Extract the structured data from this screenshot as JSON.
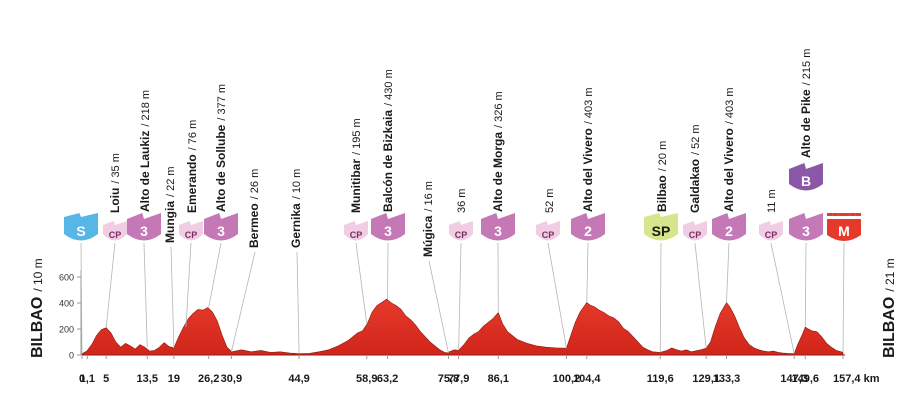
{
  "chart_data": {
    "type": "area",
    "start_label": "BILBAO",
    "start_alt": "/ 10 m",
    "finish_label": "BILBAO",
    "finish_alt": "/ 21 m",
    "unit": "km",
    "ylim": [
      0,
      650
    ],
    "yticks": [
      "0",
      "200",
      "400",
      "600"
    ],
    "xticks": [
      {
        "km": 0,
        "label": "0"
      },
      {
        "km": 1.1,
        "label": "1,1"
      },
      {
        "km": 5,
        "label": "5"
      },
      {
        "km": 13.5,
        "label": "13,5"
      },
      {
        "km": 19,
        "label": "19"
      },
      {
        "km": 26.2,
        "label": "26,2"
      },
      {
        "km": 30.9,
        "label": "30,9"
      },
      {
        "km": 44.9,
        "label": "44,9"
      },
      {
        "km": 58.9,
        "label": "58,9"
      },
      {
        "km": 63.2,
        "label": "63,2"
      },
      {
        "km": 75.8,
        "label": "75,8"
      },
      {
        "km": 77.9,
        "label": "77,9"
      },
      {
        "km": 86.1,
        "label": "86,1"
      },
      {
        "km": 100.2,
        "label": "100,2"
      },
      {
        "km": 104.4,
        "label": "104,4"
      },
      {
        "km": 119.6,
        "label": "119,6"
      },
      {
        "km": 129.1,
        "label": "129,1"
      },
      {
        "km": 133.3,
        "label": "133,3"
      },
      {
        "km": 147.3,
        "label": "147,3"
      },
      {
        "km": 149.6,
        "label": "149,6"
      },
      {
        "km": 157.4,
        "label": "157,4 km"
      }
    ],
    "profile": [
      [
        0,
        10
      ],
      [
        1,
        30
      ],
      [
        2,
        80
      ],
      [
        3,
        150
      ],
      [
        4,
        195
      ],
      [
        5,
        210
      ],
      [
        6,
        170
      ],
      [
        7,
        100
      ],
      [
        8,
        60
      ],
      [
        9,
        90
      ],
      [
        10,
        70
      ],
      [
        11,
        45
      ],
      [
        12,
        80
      ],
      [
        13,
        60
      ],
      [
        14,
        30
      ],
      [
        15,
        35
      ],
      [
        16,
        60
      ],
      [
        17,
        95
      ],
      [
        18,
        65
      ],
      [
        19,
        55
      ],
      [
        20,
        140
      ],
      [
        21,
        215
      ],
      [
        22,
        280
      ],
      [
        23,
        320
      ],
      [
        24,
        350
      ],
      [
        25,
        345
      ],
      [
        26,
        365
      ],
      [
        27,
        330
      ],
      [
        28,
        260
      ],
      [
        29,
        150
      ],
      [
        30,
        60
      ],
      [
        31,
        25
      ],
      [
        33,
        40
      ],
      [
        35,
        25
      ],
      [
        37,
        35
      ],
      [
        39,
        20
      ],
      [
        41,
        25
      ],
      [
        43,
        15
      ],
      [
        45,
        10
      ],
      [
        47,
        12
      ],
      [
        49,
        25
      ],
      [
        51,
        40
      ],
      [
        53,
        70
      ],
      [
        55,
        110
      ],
      [
        57,
        170
      ],
      [
        58,
        185
      ],
      [
        59,
        240
      ],
      [
        60,
        330
      ],
      [
        61,
        380
      ],
      [
        62,
        405
      ],
      [
        63,
        430
      ],
      [
        64,
        400
      ],
      [
        65,
        380
      ],
      [
        66,
        350
      ],
      [
        67,
        300
      ],
      [
        68,
        270
      ],
      [
        69,
        230
      ],
      [
        70,
        180
      ],
      [
        71,
        140
      ],
      [
        72,
        100
      ],
      [
        73,
        70
      ],
      [
        74,
        40
      ],
      [
        75,
        20
      ],
      [
        75.8,
        16
      ],
      [
        76,
        25
      ],
      [
        77,
        40
      ],
      [
        77.9,
        36
      ],
      [
        79,
        80
      ],
      [
        80,
        130
      ],
      [
        81,
        160
      ],
      [
        82,
        180
      ],
      [
        83,
        220
      ],
      [
        84,
        250
      ],
      [
        85,
        280
      ],
      [
        86.1,
        326
      ],
      [
        87,
        240
      ],
      [
        88,
        180
      ],
      [
        89,
        150
      ],
      [
        90,
        120
      ],
      [
        92,
        90
      ],
      [
        94,
        70
      ],
      [
        96,
        60
      ],
      [
        98,
        55
      ],
      [
        100.2,
        52
      ],
      [
        101,
        140
      ],
      [
        102,
        250
      ],
      [
        103,
        330
      ],
      [
        104.4,
        403
      ],
      [
        105,
        385
      ],
      [
        106,
        370
      ],
      [
        107,
        345
      ],
      [
        108,
        325
      ],
      [
        109,
        300
      ],
      [
        110,
        285
      ],
      [
        111,
        255
      ],
      [
        112,
        205
      ],
      [
        113,
        180
      ],
      [
        114,
        140
      ],
      [
        115,
        100
      ],
      [
        116,
        60
      ],
      [
        117,
        40
      ],
      [
        118,
        25
      ],
      [
        119.6,
        20
      ],
      [
        121,
        35
      ],
      [
        122,
        55
      ],
      [
        123,
        40
      ],
      [
        124,
        30
      ],
      [
        125,
        40
      ],
      [
        126,
        25
      ],
      [
        128,
        40
      ],
      [
        129.1,
        52
      ],
      [
        130,
        100
      ],
      [
        131,
        220
      ],
      [
        132,
        320
      ],
      [
        133.3,
        403
      ],
      [
        134,
        370
      ],
      [
        135,
        300
      ],
      [
        136,
        210
      ],
      [
        137,
        130
      ],
      [
        138,
        80
      ],
      [
        139,
        55
      ],
      [
        140,
        40
      ],
      [
        141,
        30
      ],
      [
        142,
        25
      ],
      [
        143,
        30
      ],
      [
        144,
        20
      ],
      [
        145,
        15
      ],
      [
        146,
        12
      ],
      [
        147.3,
        11
      ],
      [
        148,
        80
      ],
      [
        149,
        160
      ],
      [
        149.6,
        215
      ],
      [
        150,
        205
      ],
      [
        151,
        185
      ],
      [
        152,
        180
      ],
      [
        153,
        140
      ],
      [
        154,
        90
      ],
      [
        155,
        60
      ],
      [
        156,
        35
      ],
      [
        157,
        25
      ],
      [
        157.4,
        21
      ]
    ]
  },
  "markers": [
    {
      "km": 0,
      "badge": "S",
      "badge_style": "start",
      "name": "",
      "alt": "",
      "label": ""
    },
    {
      "km": 5,
      "badge": "CP",
      "badge_style": "cp",
      "name": "Loiu",
      "alt": "/ 35 m",
      "label": "Loiu / 35 m"
    },
    {
      "km": 13.5,
      "badge": "3",
      "badge_style": "cat3",
      "name": "Alto de Laukiz",
      "alt": "/ 218 m",
      "label": "Alto de Laukiz / 218 m"
    },
    {
      "km": 19,
      "badge": "",
      "badge_style": "none",
      "name": "Mungia",
      "alt": "/ 22 m",
      "label": "Mungia / 22 m"
    },
    {
      "km": 21.5,
      "badge": "CP",
      "badge_style": "cp",
      "name": "Emerando",
      "alt": "/ 76 m",
      "label": "Emerando / 76 m"
    },
    {
      "km": 26.2,
      "badge": "3",
      "badge_style": "cat3",
      "name": "Alto de Sollube",
      "alt": "/ 377 m",
      "label": "Alto de Sollube / 377 m"
    },
    {
      "km": 30.9,
      "badge": "",
      "badge_style": "none",
      "name": "Bermeo",
      "alt": "/ 26 m",
      "label": "Bermeo / 26 m"
    },
    {
      "km": 44.9,
      "badge": "",
      "badge_style": "none",
      "name": "Gernika",
      "alt": "/ 10 m",
      "label": "Gernika / 10 m"
    },
    {
      "km": 58.9,
      "badge": "CP",
      "badge_style": "cp",
      "name": "Munitibar",
      "alt": "/ 195 m",
      "label": "Munitibar / 195 m"
    },
    {
      "km": 63.2,
      "badge": "3",
      "badge_style": "cat3",
      "name": "Balcón de Bizkaia",
      "alt": "/ 430 m",
      "label": "Balcón de Bizkaia / 430 m"
    },
    {
      "km": 75.8,
      "badge": "",
      "badge_style": "none",
      "name": "Múgica",
      "alt": "/ 16 m",
      "label": "Múgica / 16 m"
    },
    {
      "km": 77.9,
      "badge": "CP",
      "badge_style": "cp",
      "name": "",
      "alt": "36 m",
      "label": "36 m"
    },
    {
      "km": 86.1,
      "badge": "3",
      "badge_style": "cat3",
      "name": "Alto de Morga",
      "alt": "/ 326 m",
      "label": "Alto de Morga / 326 m"
    },
    {
      "km": 100.2,
      "badge": "CP",
      "badge_style": "cp",
      "name": "",
      "alt": "52 m",
      "label": "52 m"
    },
    {
      "km": 104.4,
      "badge": "2",
      "badge_style": "cat2",
      "name": "Alto del Vivero",
      "alt": "/ 403 m",
      "label": "Alto del Vivero / 403 m"
    },
    {
      "km": 119.6,
      "badge": "SP",
      "badge_style": "sprint",
      "name": "Bilbao",
      "alt": "/ 20 m",
      "label": "Bilbao / 20 m"
    },
    {
      "km": 129.1,
      "badge": "CP",
      "badge_style": "cp",
      "name": "Galdakao",
      "alt": "/ 52 m",
      "label": "Galdakao / 52 m"
    },
    {
      "km": 133.3,
      "badge": "2",
      "badge_style": "cat2",
      "name": "Alto del Vivero",
      "alt": "/ 403 m",
      "label": "Alto del Vivero / 403 m"
    },
    {
      "km": 147.3,
      "badge": "CP",
      "badge_style": "cp",
      "name": "",
      "alt": "11 m",
      "label": "11 m"
    },
    {
      "km": 149.6,
      "badge": "3",
      "badge_style": "cat3",
      "name": "Alto de Pike",
      "alt": "/ 215 m",
      "label": "Alto de Pike / 215 m"
    },
    {
      "km": 149.6,
      "badge": "B",
      "badge_style": "bonus",
      "name": "",
      "alt": "",
      "label": ""
    },
    {
      "km": 157.4,
      "badge": "M",
      "badge_style": "finish",
      "name": "",
      "alt": "",
      "label": ""
    }
  ],
  "colors": {
    "profile_fill": "#e53a2b",
    "profile_dark": "#8e1b12",
    "axis": "#9a9a9a",
    "cp_badge": "#f0cde3",
    "cp_text": "#7a2a62",
    "cat_badge": "#c478b6",
    "start_badge": "#56b6e6",
    "sprint_badge": "#d7e58c",
    "bonus_badge": "#8a58a6",
    "finish_badge": "#e53a2b",
    "text": "#1a1a1a"
  }
}
